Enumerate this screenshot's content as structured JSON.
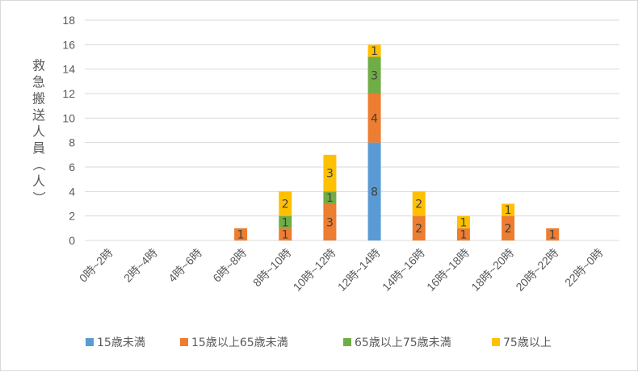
{
  "chart_data": {
    "type": "bar",
    "stacked": true,
    "categories": [
      "0時~2時",
      "2時~4時",
      "4時~6時",
      "6時~8時",
      "8時~10時",
      "10時~12時",
      "12時~14時",
      "14時~16時",
      "16時~18時",
      "18時~20時",
      "20時~22時",
      "22時~0時"
    ],
    "series": [
      {
        "name": "15歳未満",
        "color": "#5b9bd5",
        "values": [
          0,
          0,
          0,
          0,
          0,
          0,
          8,
          0,
          0,
          0,
          0,
          0
        ]
      },
      {
        "name": "15歳以上65歳未満",
        "color": "#ed7d31",
        "values": [
          0,
          0,
          0,
          1,
          1,
          3,
          4,
          2,
          1,
          2,
          1,
          0
        ]
      },
      {
        "name": "65歳以上75歳未満",
        "color": "#70ad47",
        "values": [
          0,
          0,
          0,
          0,
          1,
          1,
          3,
          0,
          0,
          0,
          0,
          0
        ]
      },
      {
        "name": "75歳以上",
        "color": "#ffc000",
        "values": [
          0,
          0,
          0,
          0,
          2,
          3,
          1,
          2,
          1,
          1,
          0,
          0
        ]
      }
    ],
    "ylabel": "救急搬送人員（人）",
    "ylim": [
      0,
      18
    ],
    "yticks": [
      0,
      2,
      4,
      6,
      8,
      10,
      12,
      14,
      16,
      18
    ],
    "grid": true,
    "legend_position": "bottom"
  }
}
